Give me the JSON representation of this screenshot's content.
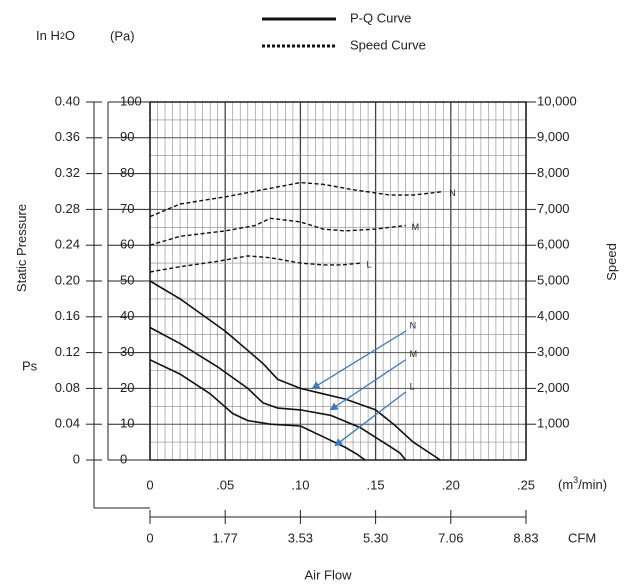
{
  "chart_data": {
    "type": "line",
    "legend": {
      "pq_label": "P-Q Curve",
      "speed_label": "Speed Curve",
      "placement": "top-center"
    },
    "units": {
      "in_h2o": "In H",
      "in_h2o_sub": "2",
      "in_h2o_tail": "O",
      "pa": "(Pa)"
    },
    "axes": {
      "y_left_label": "Static Pressure",
      "y_left_sub_label": "Ps",
      "y_inh2o_ticks": [
        "0.40",
        "0.36",
        "0.32",
        "0.28",
        "0.24",
        "0.20",
        "0.16",
        "0.12",
        "0.08",
        "0.04",
        "0"
      ],
      "y_pa_ticks": [
        "100",
        "90",
        "80",
        "70",
        "60",
        "50",
        "40",
        "30",
        "20",
        "10",
        "0"
      ],
      "y_pa_range": [
        0,
        100
      ],
      "y_right_label": "Speed",
      "y_speed_ticks": [
        "10,000",
        "9,000",
        "8,000",
        "7,000",
        "6,000",
        "5,000",
        "4,000",
        "3,000",
        "2,000",
        "1,000"
      ],
      "y_speed_range": [
        0,
        10000
      ],
      "x_label": "Air Flow",
      "x_m3_ticks": [
        "0",
        ".05",
        ".10",
        ".15",
        ".20",
        ".25"
      ],
      "x_m3_unit_pre": "(m",
      "x_m3_unit_sup": "3",
      "x_m3_unit_post": "/min)",
      "x_range": [
        0,
        0.25
      ],
      "x_cfm_ticks": [
        "0",
        "1.77",
        "3.53",
        "5.30",
        "7.06",
        "8.83"
      ],
      "x_cfm_unit": "CFM",
      "grid": true
    },
    "series": [
      {
        "name": "N",
        "kind": "pq",
        "points": [
          [
            0,
            50
          ],
          [
            0.02,
            45
          ],
          [
            0.05,
            36
          ],
          [
            0.075,
            27
          ],
          [
            0.085,
            22.5
          ],
          [
            0.1,
            20
          ],
          [
            0.115,
            18.5
          ],
          [
            0.13,
            17
          ],
          [
            0.15,
            14
          ],
          [
            0.162,
            10
          ],
          [
            0.175,
            5
          ],
          [
            0.193,
            0
          ]
        ]
      },
      {
        "name": "M",
        "kind": "pq",
        "points": [
          [
            0,
            37
          ],
          [
            0.02,
            32.5
          ],
          [
            0.045,
            26
          ],
          [
            0.065,
            20
          ],
          [
            0.075,
            16
          ],
          [
            0.085,
            14.5
          ],
          [
            0.1,
            14
          ],
          [
            0.12,
            12.5
          ],
          [
            0.14,
            9
          ],
          [
            0.155,
            5
          ],
          [
            0.166,
            2
          ],
          [
            0.17,
            0
          ]
        ]
      },
      {
        "name": "L",
        "kind": "pq",
        "points": [
          [
            0,
            28
          ],
          [
            0.02,
            24
          ],
          [
            0.04,
            18.5
          ],
          [
            0.055,
            13
          ],
          [
            0.065,
            11
          ],
          [
            0.08,
            10
          ],
          [
            0.1,
            9.5
          ],
          [
            0.115,
            6.5
          ],
          [
            0.13,
            3.5
          ],
          [
            0.138,
            1.5
          ],
          [
            0.143,
            0
          ]
        ]
      },
      {
        "name": "N",
        "kind": "speed",
        "points": [
          [
            0,
            6800
          ],
          [
            0.02,
            7150
          ],
          [
            0.05,
            7350
          ],
          [
            0.075,
            7550
          ],
          [
            0.1,
            7750
          ],
          [
            0.115,
            7700
          ],
          [
            0.135,
            7550
          ],
          [
            0.16,
            7400
          ],
          [
            0.175,
            7400
          ],
          [
            0.195,
            7500
          ]
        ]
      },
      {
        "name": "M",
        "kind": "speed",
        "points": [
          [
            0,
            6000
          ],
          [
            0.02,
            6250
          ],
          [
            0.05,
            6400
          ],
          [
            0.07,
            6550
          ],
          [
            0.08,
            6750
          ],
          [
            0.1,
            6650
          ],
          [
            0.115,
            6450
          ],
          [
            0.13,
            6400
          ],
          [
            0.15,
            6450
          ],
          [
            0.17,
            6550
          ]
        ]
      },
      {
        "name": "L",
        "kind": "speed",
        "points": [
          [
            0,
            5250
          ],
          [
            0.02,
            5400
          ],
          [
            0.045,
            5550
          ],
          [
            0.065,
            5700
          ],
          [
            0.08,
            5650
          ],
          [
            0.1,
            5500
          ],
          [
            0.115,
            5450
          ],
          [
            0.128,
            5450
          ],
          [
            0.14,
            5500
          ]
        ]
      }
    ],
    "annotations": [
      {
        "label": "N",
        "from": [
          0.17,
          36
        ],
        "to": [
          0.108,
          20
        ]
      },
      {
        "label": "M",
        "from": [
          0.17,
          28
        ],
        "to": [
          0.12,
          14
        ]
      },
      {
        "label": "L",
        "from": [
          0.17,
          19
        ],
        "to": [
          0.123,
          4
        ]
      }
    ],
    "colors": {
      "curve": "#111111",
      "grid": "#8a8a8a",
      "arrow": "#3b78c2"
    }
  }
}
